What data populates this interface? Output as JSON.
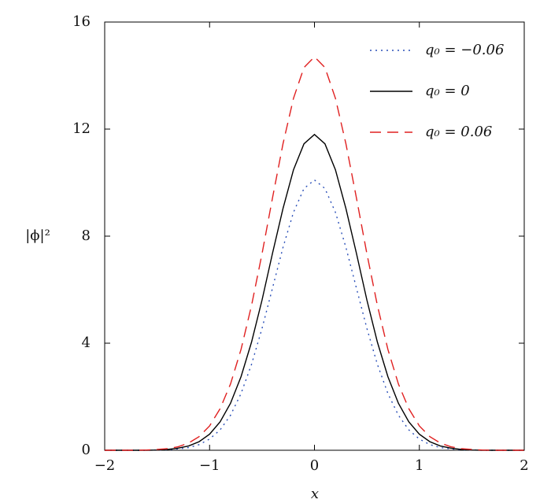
{
  "chart_data": {
    "type": "line",
    "x_label": "x",
    "y_label": "|ϕ|²",
    "x": [
      -2,
      -1.9,
      -1.8,
      -1.7,
      -1.6,
      -1.5,
      -1.4,
      -1.3,
      -1.2,
      -1.1,
      -1,
      -0.9,
      -0.8,
      -0.7,
      -0.6,
      -0.5,
      -0.4,
      -0.3,
      -0.2,
      -0.1,
      0,
      0.1,
      0.2,
      0.3,
      0.4,
      0.5,
      0.6,
      0.7,
      0.8,
      0.9,
      1,
      1.1,
      1.2,
      1.3,
      1.4,
      1.5,
      1.6,
      1.7,
      1.8,
      1.9,
      2
    ],
    "series": [
      {
        "name": "q₀ = −0.06",
        "color": "#2a4fb8",
        "style": "dotted",
        "values": [
          0,
          0,
          0,
          0,
          0,
          0.01,
          0.02,
          0.05,
          0.1,
          0.21,
          0.42,
          0.76,
          1.31,
          2.12,
          3.21,
          4.55,
          6.06,
          7.58,
          8.89,
          9.78,
          10.1,
          9.78,
          8.89,
          7.58,
          6.06,
          4.55,
          3.21,
          2.12,
          1.31,
          0.76,
          0.42,
          0.21,
          0.1,
          0.05,
          0.02,
          0.01,
          0,
          0,
          0,
          0,
          0
        ]
      },
      {
        "name": "q₀ = 0",
        "color": "#000000",
        "style": "solid",
        "values": [
          0,
          0,
          0,
          0,
          0,
          0.01,
          0.03,
          0.08,
          0.16,
          0.32,
          0.6,
          1.06,
          1.76,
          2.75,
          4.04,
          5.61,
          7.36,
          9.03,
          10.48,
          11.45,
          11.8,
          11.45,
          10.48,
          9.03,
          7.36,
          5.61,
          4.04,
          2.75,
          1.76,
          1.06,
          0.6,
          0.32,
          0.16,
          0.08,
          0.03,
          0.01,
          0,
          0,
          0,
          0,
          0
        ]
      },
      {
        "name": "q₀ = 0.06",
        "color": "#e02020",
        "style": "dashed",
        "values": [
          0,
          0,
          0,
          0,
          0.01,
          0.03,
          0.06,
          0.13,
          0.27,
          0.51,
          0.91,
          1.55,
          2.48,
          3.77,
          5.41,
          7.34,
          9.43,
          11.45,
          13.15,
          14.3,
          14.7,
          14.3,
          13.15,
          11.45,
          9.43,
          7.34,
          5.41,
          3.77,
          2.48,
          1.55,
          0.91,
          0.51,
          0.27,
          0.13,
          0.06,
          0.03,
          0.01,
          0,
          0,
          0,
          0
        ]
      }
    ],
    "xlim": [
      -2,
      2
    ],
    "ylim": [
      0,
      16
    ],
    "xticks": [
      {
        "value": -2,
        "label": "−2"
      },
      {
        "value": -1,
        "label": "−1"
      },
      0,
      1,
      2
    ],
    "yticks": [
      0,
      4,
      8,
      12,
      16
    ],
    "legend": "upper-right"
  }
}
